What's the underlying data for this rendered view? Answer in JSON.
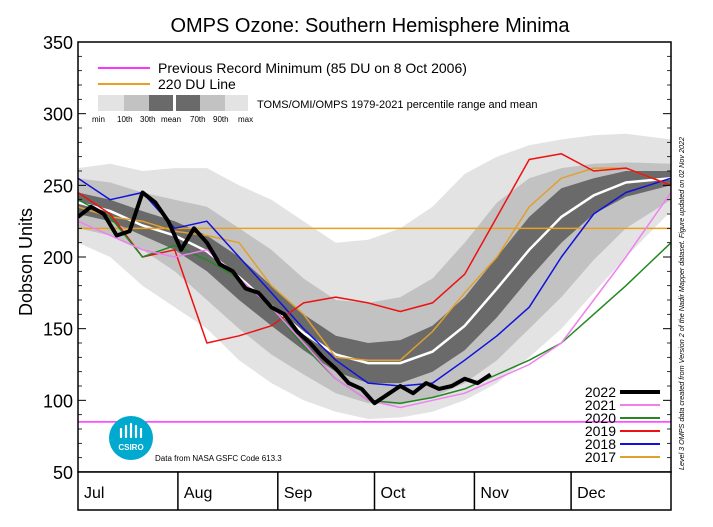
{
  "chart_data": {
    "type": "line",
    "title": "OMPS Ozone: Southern Hemisphere Minima",
    "xlabel": "",
    "ylabel": "Dobson Units",
    "ylim": [
      50,
      350
    ],
    "yticks": [
      50,
      100,
      150,
      200,
      250,
      300,
      350
    ],
    "xlim_day": [
      0,
      184
    ],
    "months": [
      {
        "label": "Jul",
        "start": 0
      },
      {
        "label": "Aug",
        "start": 31
      },
      {
        "label": "Sep",
        "start": 62
      },
      {
        "label": "Oct",
        "start": 92
      },
      {
        "label": "Nov",
        "start": 123
      },
      {
        "label": "Dec",
        "start": 153
      }
    ],
    "reference_lines": [
      {
        "name": "record",
        "label": "Previous Record Minimum (85 DU on 8 Oct 2006)",
        "value": 85,
        "color": "#ff33ff"
      },
      {
        "name": "line220",
        "label": "220 DU Line",
        "value": 220,
        "color": "#e8a020"
      }
    ],
    "percentile_legend": {
      "description": "TOMS/OMI/OMPS 1979-2021 percentile range and mean",
      "labels": [
        "min",
        "10th",
        "30th",
        "mean",
        "70th",
        "90th",
        "max"
      ]
    },
    "percentiles": {
      "x": [
        0,
        10,
        20,
        30,
        40,
        50,
        60,
        70,
        80,
        90,
        100,
        110,
        120,
        130,
        140,
        150,
        160,
        170,
        184
      ],
      "min": [
        210,
        200,
        180,
        165,
        150,
        128,
        112,
        100,
        92,
        87,
        88,
        92,
        100,
        112,
        130,
        150,
        175,
        200,
        232
      ],
      "p10": [
        220,
        215,
        205,
        190,
        170,
        150,
        132,
        118,
        105,
        98,
        97,
        102,
        112,
        128,
        150,
        172,
        198,
        220,
        240
      ],
      "p30": [
        230,
        225,
        215,
        205,
        190,
        170,
        152,
        135,
        120,
        112,
        112,
        120,
        135,
        158,
        185,
        210,
        230,
        242,
        250
      ],
      "mean": [
        238,
        232,
        222,
        215,
        204,
        186,
        166,
        147,
        132,
        126,
        126,
        134,
        152,
        178,
        205,
        228,
        243,
        252,
        255
      ],
      "p70": [
        245,
        240,
        232,
        225,
        215,
        200,
        180,
        160,
        145,
        140,
        142,
        152,
        172,
        200,
        228,
        248,
        255,
        260,
        260
      ],
      "p90": [
        255,
        252,
        245,
        240,
        235,
        220,
        205,
        185,
        170,
        168,
        172,
        185,
        210,
        238,
        255,
        262,
        265,
        266,
        265
      ],
      "max": [
        262,
        265,
        260,
        262,
        262,
        250,
        240,
        225,
        210,
        212,
        220,
        235,
        258,
        270,
        278,
        282,
        285,
        286,
        282
      ]
    },
    "series": [
      {
        "name": "2022",
        "color": "#000000",
        "width": 4,
        "x": [
          0,
          4,
          8,
          12,
          16,
          20,
          24,
          28,
          32,
          36,
          40,
          44,
          48,
          52,
          56,
          60,
          64,
          68,
          72,
          76,
          80,
          84,
          88,
          92,
          96,
          100,
          104,
          108,
          112,
          116,
          120,
          124,
          128
        ],
        "y": [
          228,
          235,
          230,
          215,
          218,
          245,
          238,
          225,
          205,
          220,
          210,
          195,
          190,
          178,
          175,
          165,
          160,
          148,
          140,
          130,
          122,
          112,
          108,
          98,
          104,
          110,
          105,
          112,
          108,
          110,
          115,
          112,
          118
        ]
      },
      {
        "name": "2021",
        "color": "#f080f0",
        "width": 1.5,
        "x": [
          0,
          10,
          20,
          30,
          40,
          50,
          60,
          70,
          80,
          90,
          100,
          110,
          120,
          130,
          140,
          150,
          160,
          170,
          184
        ],
        "y": [
          225,
          215,
          205,
          200,
          205,
          185,
          165,
          140,
          115,
          100,
          95,
          100,
          105,
          115,
          125,
          140,
          170,
          200,
          245
        ]
      },
      {
        "name": "2020",
        "color": "#228822",
        "width": 1.5,
        "x": [
          0,
          10,
          20,
          30,
          40,
          50,
          60,
          70,
          80,
          90,
          100,
          110,
          120,
          130,
          140,
          150,
          160,
          170,
          184
        ],
        "y": [
          240,
          228,
          200,
          208,
          198,
          185,
          165,
          138,
          115,
          100,
          98,
          102,
          108,
          118,
          128,
          140,
          160,
          180,
          210
        ]
      },
      {
        "name": "2019",
        "color": "#ee1111",
        "width": 1.5,
        "x": [
          0,
          10,
          20,
          30,
          40,
          50,
          60,
          70,
          80,
          90,
          100,
          110,
          120,
          130,
          140,
          150,
          160,
          170,
          184
        ],
        "y": [
          245,
          230,
          200,
          205,
          140,
          145,
          152,
          168,
          172,
          168,
          162,
          168,
          188,
          228,
          268,
          272,
          260,
          262,
          250
        ]
      },
      {
        "name": "2018",
        "color": "#1111dd",
        "width": 1.5,
        "x": [
          0,
          10,
          20,
          30,
          40,
          50,
          60,
          70,
          80,
          90,
          100,
          110,
          120,
          130,
          140,
          150,
          160,
          170,
          184
        ],
        "y": [
          255,
          240,
          245,
          220,
          225,
          200,
          175,
          150,
          128,
          112,
          110,
          112,
          128,
          145,
          165,
          200,
          230,
          245,
          255
        ]
      },
      {
        "name": "2017",
        "color": "#e0a030",
        "width": 1.5,
        "x": [
          0,
          10,
          20,
          30,
          40,
          50,
          60,
          70,
          80,
          90,
          100,
          110,
          120,
          130,
          140,
          150,
          160,
          170,
          184
        ],
        "y": [
          235,
          228,
          225,
          218,
          215,
          210,
          180,
          160,
          130,
          128,
          128,
          148,
          175,
          200,
          235,
          255,
          262,
          262,
          250
        ]
      }
    ],
    "legend_position": "bottom-right",
    "data_credit": "Data from NASA GSFC Code 613.3",
    "side_note": "Level 3 OMPS data created from Version 2 of the Nadir Mapper dataset. Figure updated on 02 Nov 2022",
    "logo_text": "CSIRO"
  }
}
